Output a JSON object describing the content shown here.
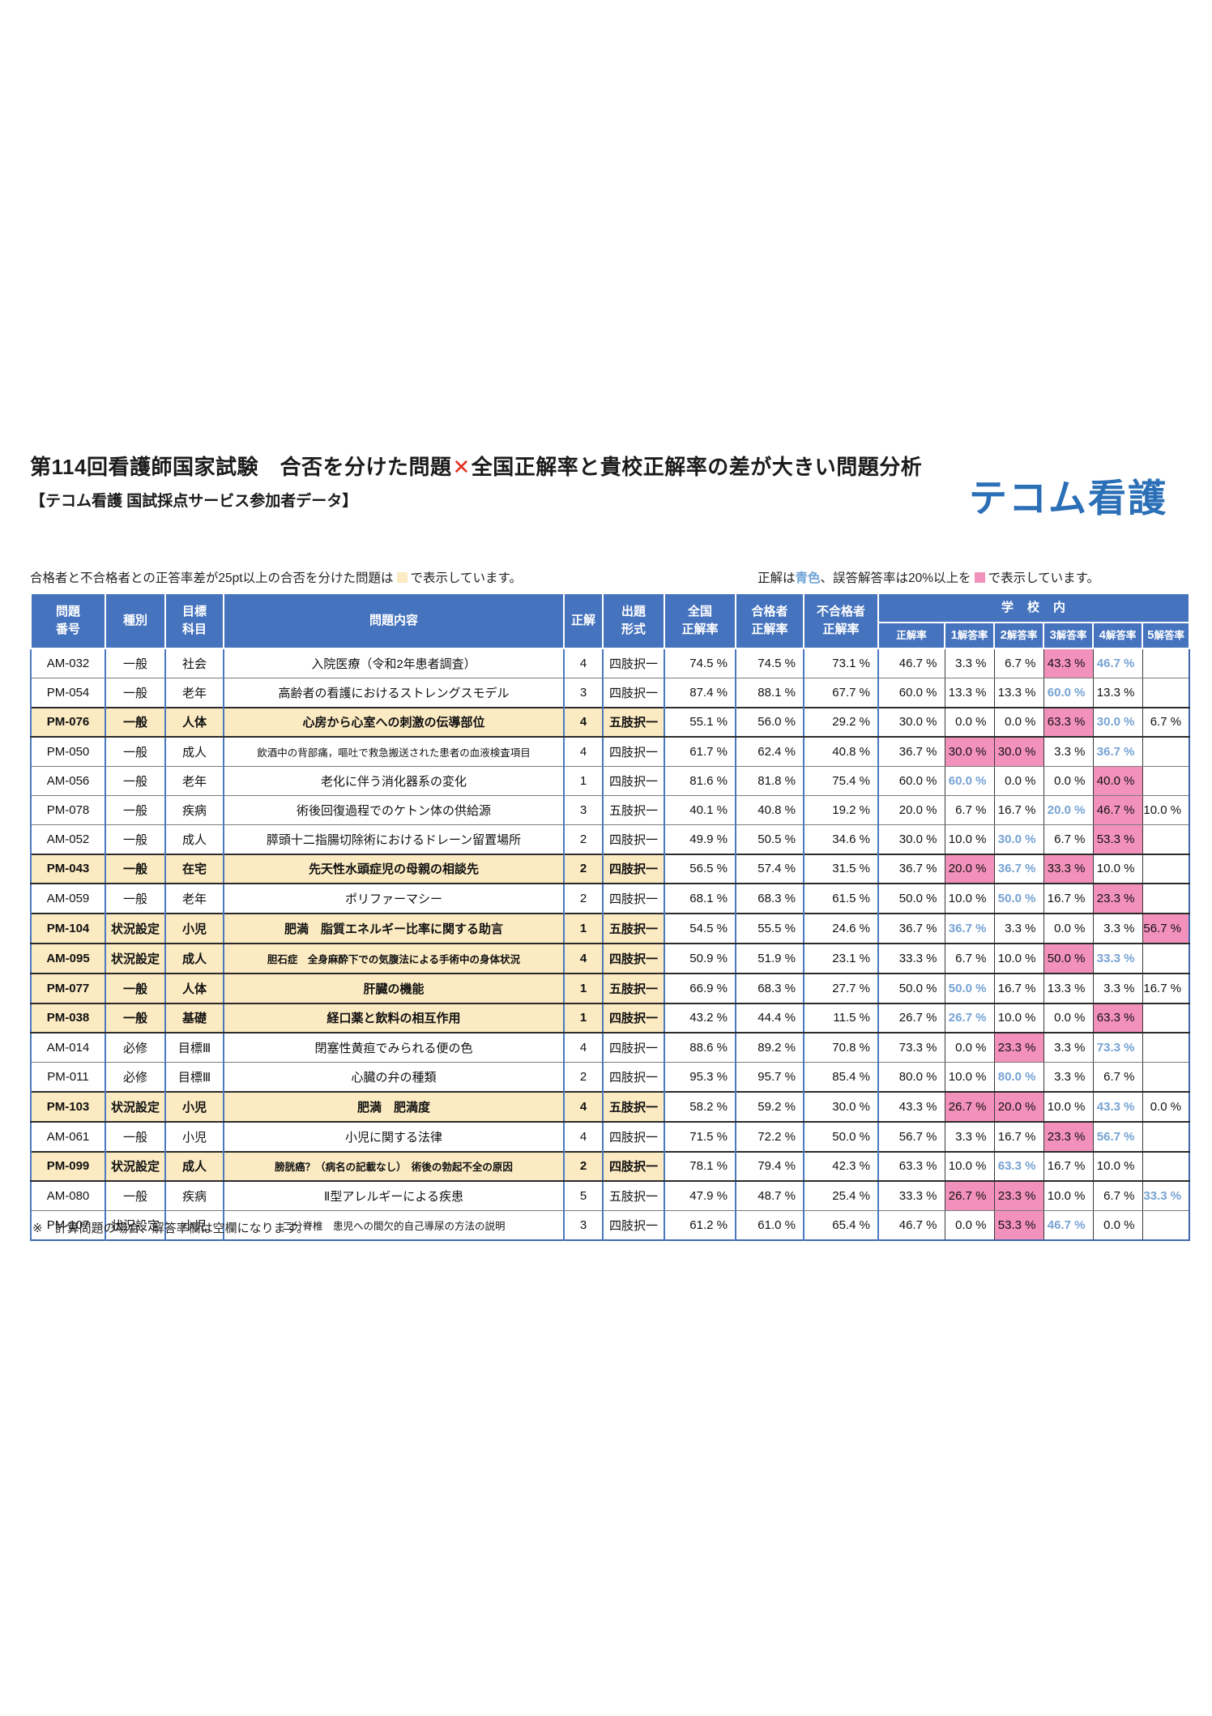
{
  "page": {
    "title_part1": "第114回看護師国家試験　合否を分けた問題",
    "title_cross": "✕",
    "title_part2": "全国正解率と貴校正解率の差が大きい問題分析",
    "subtitle": "【テコム看護 国試採点サービス参加者データ】",
    "logo": "テコム看護",
    "footnote": "※　計算問題の場合、解答率欄は空欄になります。"
  },
  "legend": {
    "left_before": "合格者と不合格者との正答率差が25pt以上の合否を分けた問題は",
    "left_after": "で表示しています。",
    "right_part1": "正解は",
    "right_blue_word": "青色",
    "right_part2": "、誤答解答率は20%以上を",
    "right_after": "で表示しています。"
  },
  "colors": {
    "header_blue": "#4573be",
    "highlight_yellow": "#fbeac2",
    "pink_highlight": "#f391bd",
    "correct_answer_blue": "#76a3d4",
    "logo_blue": "#2b6fb7",
    "cross_red": "#e03020"
  },
  "table": {
    "header": {
      "question_no": "問題\n番号",
      "category": "種別",
      "target_subject": "目標\n科目",
      "content": "問題内容",
      "answer": "正解",
      "format": "出題\n形式",
      "national": "全国\n正解率",
      "passers": "合格者\n正解率",
      "failers": "不合格者\n正解率",
      "school_group": "学　校　内",
      "school_sub": [
        "正解率",
        "1解答率",
        "2解答率",
        "3解答率",
        "4解答率",
        "5解答率"
      ]
    },
    "rows": [
      {
        "id": "AM-032",
        "type": "一般",
        "subject": "社会",
        "content": "入院医療（令和2年患者調査）",
        "answer": "4",
        "format": "四肢択一",
        "h": false,
        "national": "74.5 %",
        "passers": "74.5 %",
        "failers": "73.1 %",
        "school": "46.7 %",
        "choices": [
          {
            "v": "3.3 %"
          },
          {
            "v": "6.7 %"
          },
          {
            "v": "43.3 %",
            "pink": true
          },
          {
            "v": "46.7 %",
            "blue": true
          },
          {
            "v": ""
          }
        ]
      },
      {
        "id": "PM-054",
        "type": "一般",
        "subject": "老年",
        "content": "高齢者の看護におけるストレングスモデル",
        "answer": "3",
        "format": "四肢択一",
        "h": false,
        "national": "87.4 %",
        "passers": "88.1 %",
        "failers": "67.7 %",
        "school": "60.0 %",
        "choices": [
          {
            "v": "13.3 %"
          },
          {
            "v": "13.3 %"
          },
          {
            "v": "60.0 %",
            "blue": true
          },
          {
            "v": "13.3 %"
          },
          {
            "v": ""
          }
        ]
      },
      {
        "id": "PM-076",
        "type": "一般",
        "subject": "人体",
        "content": "心房から心室への刺激の伝導部位",
        "answer": "4",
        "format": "五肢択一",
        "h": true,
        "national": "55.1 %",
        "passers": "56.0 %",
        "failers": "29.2 %",
        "school": "30.0 %",
        "choices": [
          {
            "v": "0.0 %"
          },
          {
            "v": "0.0 %"
          },
          {
            "v": "63.3 %",
            "pink": true
          },
          {
            "v": "30.0 %",
            "blue": true
          },
          {
            "v": "6.7 %"
          }
        ]
      },
      {
        "id": "PM-050",
        "type": "一般",
        "subject": "成人",
        "content": "飲酒中の背部痛，嘔吐で救急搬送された患者の血液検査項目",
        "answer": "4",
        "format": "四肢択一",
        "h": false,
        "national": "61.7 %",
        "passers": "62.4 %",
        "failers": "40.8 %",
        "school": "36.7 %",
        "choices": [
          {
            "v": "30.0 %",
            "pink": true
          },
          {
            "v": "30.0 %",
            "pink": true
          },
          {
            "v": "3.3 %"
          },
          {
            "v": "36.7 %",
            "blue": true
          },
          {
            "v": ""
          }
        ]
      },
      {
        "id": "AM-056",
        "type": "一般",
        "subject": "老年",
        "content": "老化に伴う消化器系の変化",
        "answer": "1",
        "format": "四肢択一",
        "h": false,
        "national": "81.6 %",
        "passers": "81.8 %",
        "failers": "75.4 %",
        "school": "60.0 %",
        "choices": [
          {
            "v": "60.0 %",
            "blue": true
          },
          {
            "v": "0.0 %"
          },
          {
            "v": "0.0 %"
          },
          {
            "v": "40.0 %",
            "pink": true
          },
          {
            "v": ""
          }
        ]
      },
      {
        "id": "PM-078",
        "type": "一般",
        "subject": "疾病",
        "content": "術後回復過程でのケトン体の供給源",
        "answer": "3",
        "format": "五肢択一",
        "h": false,
        "national": "40.1 %",
        "passers": "40.8 %",
        "failers": "19.2 %",
        "school": "20.0 %",
        "choices": [
          {
            "v": "6.7 %"
          },
          {
            "v": "16.7 %"
          },
          {
            "v": "20.0 %",
            "blue": true
          },
          {
            "v": "46.7 %",
            "pink": true
          },
          {
            "v": "10.0 %"
          }
        ]
      },
      {
        "id": "AM-052",
        "type": "一般",
        "subject": "成人",
        "content": "膵頭十二指腸切除術におけるドレーン留置場所",
        "answer": "2",
        "format": "四肢択一",
        "h": false,
        "national": "49.9 %",
        "passers": "50.5 %",
        "failers": "34.6 %",
        "school": "30.0 %",
        "choices": [
          {
            "v": "10.0 %"
          },
          {
            "v": "30.0 %",
            "blue": true
          },
          {
            "v": "6.7 %"
          },
          {
            "v": "53.3 %",
            "pink": true
          },
          {
            "v": ""
          }
        ]
      },
      {
        "id": "PM-043",
        "type": "一般",
        "subject": "在宅",
        "content": "先天性水頭症児の母親の相談先",
        "answer": "2",
        "format": "四肢択一",
        "h": true,
        "national": "56.5 %",
        "passers": "57.4 %",
        "failers": "31.5 %",
        "school": "36.7 %",
        "choices": [
          {
            "v": "20.0 %",
            "pink": true
          },
          {
            "v": "36.7 %",
            "blue": true
          },
          {
            "v": "33.3 %",
            "pink": true
          },
          {
            "v": "10.0 %"
          },
          {
            "v": ""
          }
        ]
      },
      {
        "id": "AM-059",
        "type": "一般",
        "subject": "老年",
        "content": "ポリファーマシー",
        "answer": "2",
        "format": "四肢択一",
        "h": false,
        "national": "68.1 %",
        "passers": "68.3 %",
        "failers": "61.5 %",
        "school": "50.0 %",
        "choices": [
          {
            "v": "10.0 %"
          },
          {
            "v": "50.0 %",
            "blue": true
          },
          {
            "v": "16.7 %"
          },
          {
            "v": "23.3 %",
            "pink": true
          },
          {
            "v": ""
          }
        ]
      },
      {
        "id": "PM-104",
        "type": "状況設定",
        "subject": "小児",
        "content": "肥満　脂質エネルギー比率に関する助言",
        "answer": "1",
        "format": "五肢択一",
        "h": true,
        "national": "54.5 %",
        "passers": "55.5 %",
        "failers": "24.6 %",
        "school": "36.7 %",
        "choices": [
          {
            "v": "36.7 %",
            "blue": true
          },
          {
            "v": "3.3 %"
          },
          {
            "v": "0.0 %"
          },
          {
            "v": "3.3 %"
          },
          {
            "v": "56.7 %",
            "pink": true
          }
        ]
      },
      {
        "id": "AM-095",
        "type": "状況設定",
        "subject": "成人",
        "content": "胆石症　全身麻酔下での気腹法による手術中の身体状況",
        "answer": "4",
        "format": "四肢択一",
        "h": true,
        "national": "50.9 %",
        "passers": "51.9 %",
        "failers": "23.1 %",
        "school": "33.3 %",
        "choices": [
          {
            "v": "6.7 %"
          },
          {
            "v": "10.0 %"
          },
          {
            "v": "50.0 %",
            "pink": true
          },
          {
            "v": "33.3 %",
            "blue": true
          },
          {
            "v": ""
          }
        ]
      },
      {
        "id": "PM-077",
        "type": "一般",
        "subject": "人体",
        "content": "肝臓の機能",
        "answer": "1",
        "format": "五肢択一",
        "h": true,
        "national": "66.9 %",
        "passers": "68.3 %",
        "failers": "27.7 %",
        "school": "50.0 %",
        "choices": [
          {
            "v": "50.0 %",
            "blue": true
          },
          {
            "v": "16.7 %"
          },
          {
            "v": "13.3 %"
          },
          {
            "v": "3.3 %"
          },
          {
            "v": "16.7 %"
          }
        ]
      },
      {
        "id": "PM-038",
        "type": "一般",
        "subject": "基礎",
        "content": "経口薬と飲料の相互作用",
        "answer": "1",
        "format": "四肢択一",
        "h": true,
        "national": "43.2 %",
        "passers": "44.4 %",
        "failers": "11.5 %",
        "school": "26.7 %",
        "choices": [
          {
            "v": "26.7 %",
            "blue": true
          },
          {
            "v": "10.0 %"
          },
          {
            "v": "0.0 %"
          },
          {
            "v": "63.3 %",
            "pink": true
          },
          {
            "v": ""
          }
        ]
      },
      {
        "id": "AM-014",
        "type": "必修",
        "subject": "目標Ⅲ",
        "content": "閉塞性黄疸でみられる便の色",
        "answer": "4",
        "format": "四肢択一",
        "h": false,
        "national": "88.6 %",
        "passers": "89.2 %",
        "failers": "70.8 %",
        "school": "73.3 %",
        "choices": [
          {
            "v": "0.0 %"
          },
          {
            "v": "23.3 %",
            "pink": true
          },
          {
            "v": "3.3 %"
          },
          {
            "v": "73.3 %",
            "blue": true
          },
          {
            "v": ""
          }
        ]
      },
      {
        "id": "PM-011",
        "type": "必修",
        "subject": "目標Ⅲ",
        "content": "心臓の弁の種類",
        "answer": "2",
        "format": "四肢択一",
        "h": false,
        "national": "95.3 %",
        "passers": "95.7 %",
        "failers": "85.4 %",
        "school": "80.0 %",
        "choices": [
          {
            "v": "10.0 %"
          },
          {
            "v": "80.0 %",
            "blue": true
          },
          {
            "v": "3.3 %"
          },
          {
            "v": "6.7 %"
          },
          {
            "v": ""
          }
        ]
      },
      {
        "id": "PM-103",
        "type": "状況設定",
        "subject": "小児",
        "content": "肥満　肥満度",
        "answer": "4",
        "format": "五肢択一",
        "h": true,
        "national": "58.2 %",
        "passers": "59.2 %",
        "failers": "30.0 %",
        "school": "43.3 %",
        "choices": [
          {
            "v": "26.7 %",
            "pink": true
          },
          {
            "v": "20.0 %",
            "pink": true
          },
          {
            "v": "10.0 %"
          },
          {
            "v": "43.3 %",
            "blue": true
          },
          {
            "v": "0.0 %"
          }
        ]
      },
      {
        "id": "AM-061",
        "type": "一般",
        "subject": "小児",
        "content": "小児に関する法律",
        "answer": "4",
        "format": "四肢択一",
        "h": false,
        "national": "71.5 %",
        "passers": "72.2 %",
        "failers": "50.0 %",
        "school": "56.7 %",
        "choices": [
          {
            "v": "3.3 %"
          },
          {
            "v": "16.7 %"
          },
          {
            "v": "23.3 %",
            "pink": true
          },
          {
            "v": "56.7 %",
            "blue": true
          },
          {
            "v": ""
          }
        ]
      },
      {
        "id": "PM-099",
        "type": "状況設定",
        "subject": "成人",
        "content": "膀胱癌？（病名の記載なし）　術後の勃起不全の原因",
        "answer": "2",
        "format": "四肢択一",
        "h": true,
        "national": "78.1 %",
        "passers": "79.4 %",
        "failers": "42.3 %",
        "school": "63.3 %",
        "choices": [
          {
            "v": "10.0 %"
          },
          {
            "v": "63.3 %",
            "blue": true
          },
          {
            "v": "16.7 %"
          },
          {
            "v": "10.0 %"
          },
          {
            "v": ""
          }
        ]
      },
      {
        "id": "AM-080",
        "type": "一般",
        "subject": "疾病",
        "content": "Ⅱ型アレルギーによる疾患",
        "answer": "5",
        "format": "五肢択一",
        "h": false,
        "national": "47.9 %",
        "passers": "48.7 %",
        "failers": "25.4 %",
        "school": "33.3 %",
        "choices": [
          {
            "v": "26.7 %",
            "pink": true
          },
          {
            "v": "23.3 %",
            "pink": true
          },
          {
            "v": "10.0 %"
          },
          {
            "v": "6.7 %"
          },
          {
            "v": "33.3 %",
            "blue": true
          }
        ]
      },
      {
        "id": "PM-107",
        "type": "状況設定",
        "subject": "小児",
        "content": "二分脊椎　患児への間欠的自己導尿の方法の説明",
        "answer": "3",
        "format": "四肢択一",
        "h": false,
        "national": "61.2 %",
        "passers": "61.0 %",
        "failers": "65.4 %",
        "school": "46.7 %",
        "choices": [
          {
            "v": "0.0 %"
          },
          {
            "v": "53.3 %",
            "pink": true
          },
          {
            "v": "46.7 %",
            "blue": true
          },
          {
            "v": "0.0 %"
          },
          {
            "v": ""
          }
        ]
      }
    ]
  }
}
